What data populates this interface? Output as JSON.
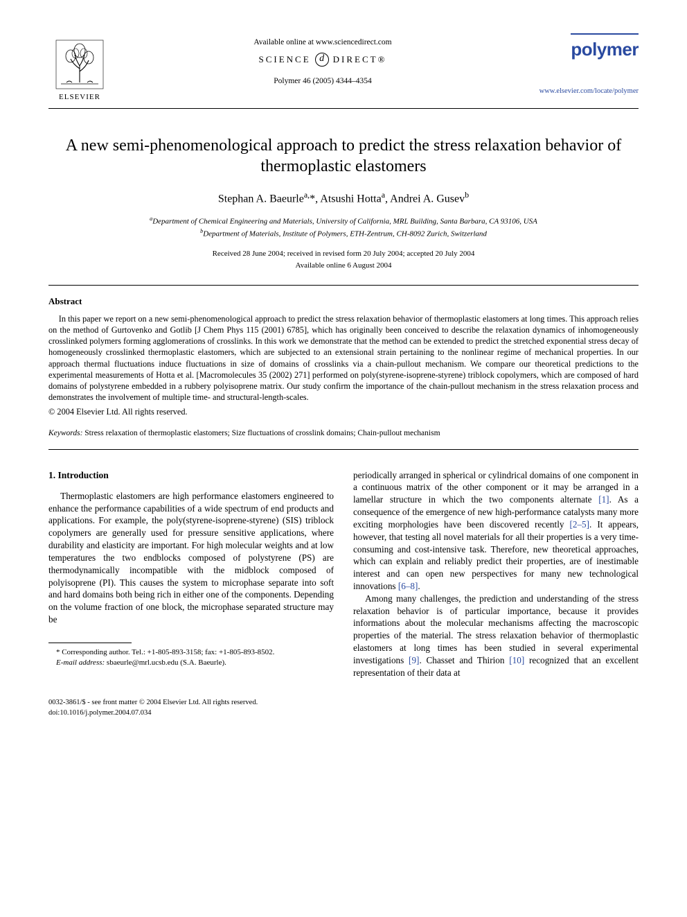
{
  "header": {
    "publisher_name": "ELSEVIER",
    "available_text": "Available online at www.sciencedirect.com",
    "science_direct_left": "SCIENCE",
    "science_direct_symbol": "d",
    "science_direct_right": "DIRECT®",
    "journal_ref": "Polymer 46 (2005) 4344–4354",
    "journal_brand": "polymer",
    "journal_link": "www.elsevier.com/locate/polymer"
  },
  "title": "A new semi-phenomenological approach to predict the stress relaxation behavior of thermoplastic elastomers",
  "authors_html": "Stephan A. Baeurle<sup>a,</sup>*, Atsushi Hotta<sup>a</sup>, Andrei A. Gusev<sup>b</sup>",
  "affiliations": {
    "a": "Department of Chemical Engineering and Materials, University of California, MRL Building, Santa Barbara, CA 93106, USA",
    "b": "Department of Materials, Institute of Polymers, ETH-Zentrum, CH-8092 Zurich, Switzerland"
  },
  "dates": {
    "received": "Received 28 June 2004; received in revised form 20 July 2004; accepted 20 July 2004",
    "online": "Available online 6 August 2004"
  },
  "abstract": {
    "heading": "Abstract",
    "body": "In this paper we report on a new semi-phenomenological approach to predict the stress relaxation behavior of thermoplastic elastomers at long times. This approach relies on the method of Gurtovenko and Gotlib [J Chem Phys 115 (2001) 6785], which has originally been conceived to describe the relaxation dynamics of inhomogeneously crosslinked polymers forming agglomerations of crosslinks. In this work we demonstrate that the method can be extended to predict the stretched exponential stress decay of homogeneously crosslinked thermoplastic elastomers, which are subjected to an extensional strain pertaining to the nonlinear regime of mechanical properties. In our approach thermal fluctuations induce fluctuations in size of domains of crosslinks via a chain-pullout mechanism. We compare our theoretical predictions to the experimental measurements of Hotta et al. [Macromolecules 35 (2002) 271] performed on poly(styrene-isoprene-styrene) triblock copolymers, which are composed of hard domains of polystyrene embedded in a rubbery polyisoprene matrix. Our study confirm the importance of the chain-pullout mechanism in the stress relaxation process and demonstrates the involvement of multiple time- and structural-length-scales.",
    "copyright": "© 2004 Elsevier Ltd. All rights reserved."
  },
  "keywords": {
    "label": "Keywords:",
    "text": "Stress relaxation of thermoplastic elastomers; Size fluctuations of crosslink domains; Chain-pullout mechanism"
  },
  "intro": {
    "heading": "1. Introduction",
    "col1_p1": "Thermoplastic elastomers are high performance elastomers engineered to enhance the performance capabilities of a wide spectrum of end products and applications. For example, the poly(styrene-isoprene-styrene) (SIS) triblock copolymers are generally used for pressure sensitive applications, where durability and elasticity are important. For high molecular weights and at low temperatures the two endblocks composed of polystyrene (PS) are thermodynamically incompatible with the midblock composed of polyisoprene (PI). This causes the system to microphase separate into soft and hard domains both being rich in either one of the components. Depending on the volume fraction of one block, the microphase separated structure may be",
    "col2_p1_pre": "periodically arranged in spherical or cylindrical domains of one component in a continuous matrix of the other component or it may be arranged in a lamellar structure in which the two components alternate ",
    "ref1": "[1]",
    "col2_p1_mid": ". As a consequence of the emergence of new high-performance catalysts many more exciting morphologies have been discovered recently ",
    "ref2": "[2–5]",
    "col2_p1_mid2": ". It appears, however, that testing all novel materials for all their properties is a very time-consuming and cost-intensive task. Therefore, new theoretical approaches, which can explain and reliably predict their properties, are of inestimable interest and can open new perspectives for many new technological innovations ",
    "ref3": "[6–8]",
    "col2_p1_post": ".",
    "col2_p2_pre": "Among many challenges, the prediction and understanding of the stress relaxation behavior is of particular importance, because it provides informations about the molecular mechanisms affecting the macroscopic properties of the material. The stress relaxation behavior of thermoplastic elastomers at long times has been studied in several experimental investigations ",
    "ref4": "[9]",
    "col2_p2_mid": ". Chasset and Thirion ",
    "ref5": "[10]",
    "col2_p2_post": " recognized that an excellent representation of their data at"
  },
  "footnote": {
    "corresponding": "* Corresponding author. Tel.: +1-805-893-3158; fax: +1-805-893-8502.",
    "email_label": "E-mail address:",
    "email": "sbaeurle@mrl.ucsb.edu (S.A. Baeurle)."
  },
  "footer": {
    "line1": "0032-3861/$ - see front matter © 2004 Elsevier Ltd. All rights reserved.",
    "line2": "doi:10.1016/j.polymer.2004.07.034"
  },
  "colors": {
    "link": "#2a4aa0",
    "text": "#000000",
    "background": "#ffffff"
  }
}
